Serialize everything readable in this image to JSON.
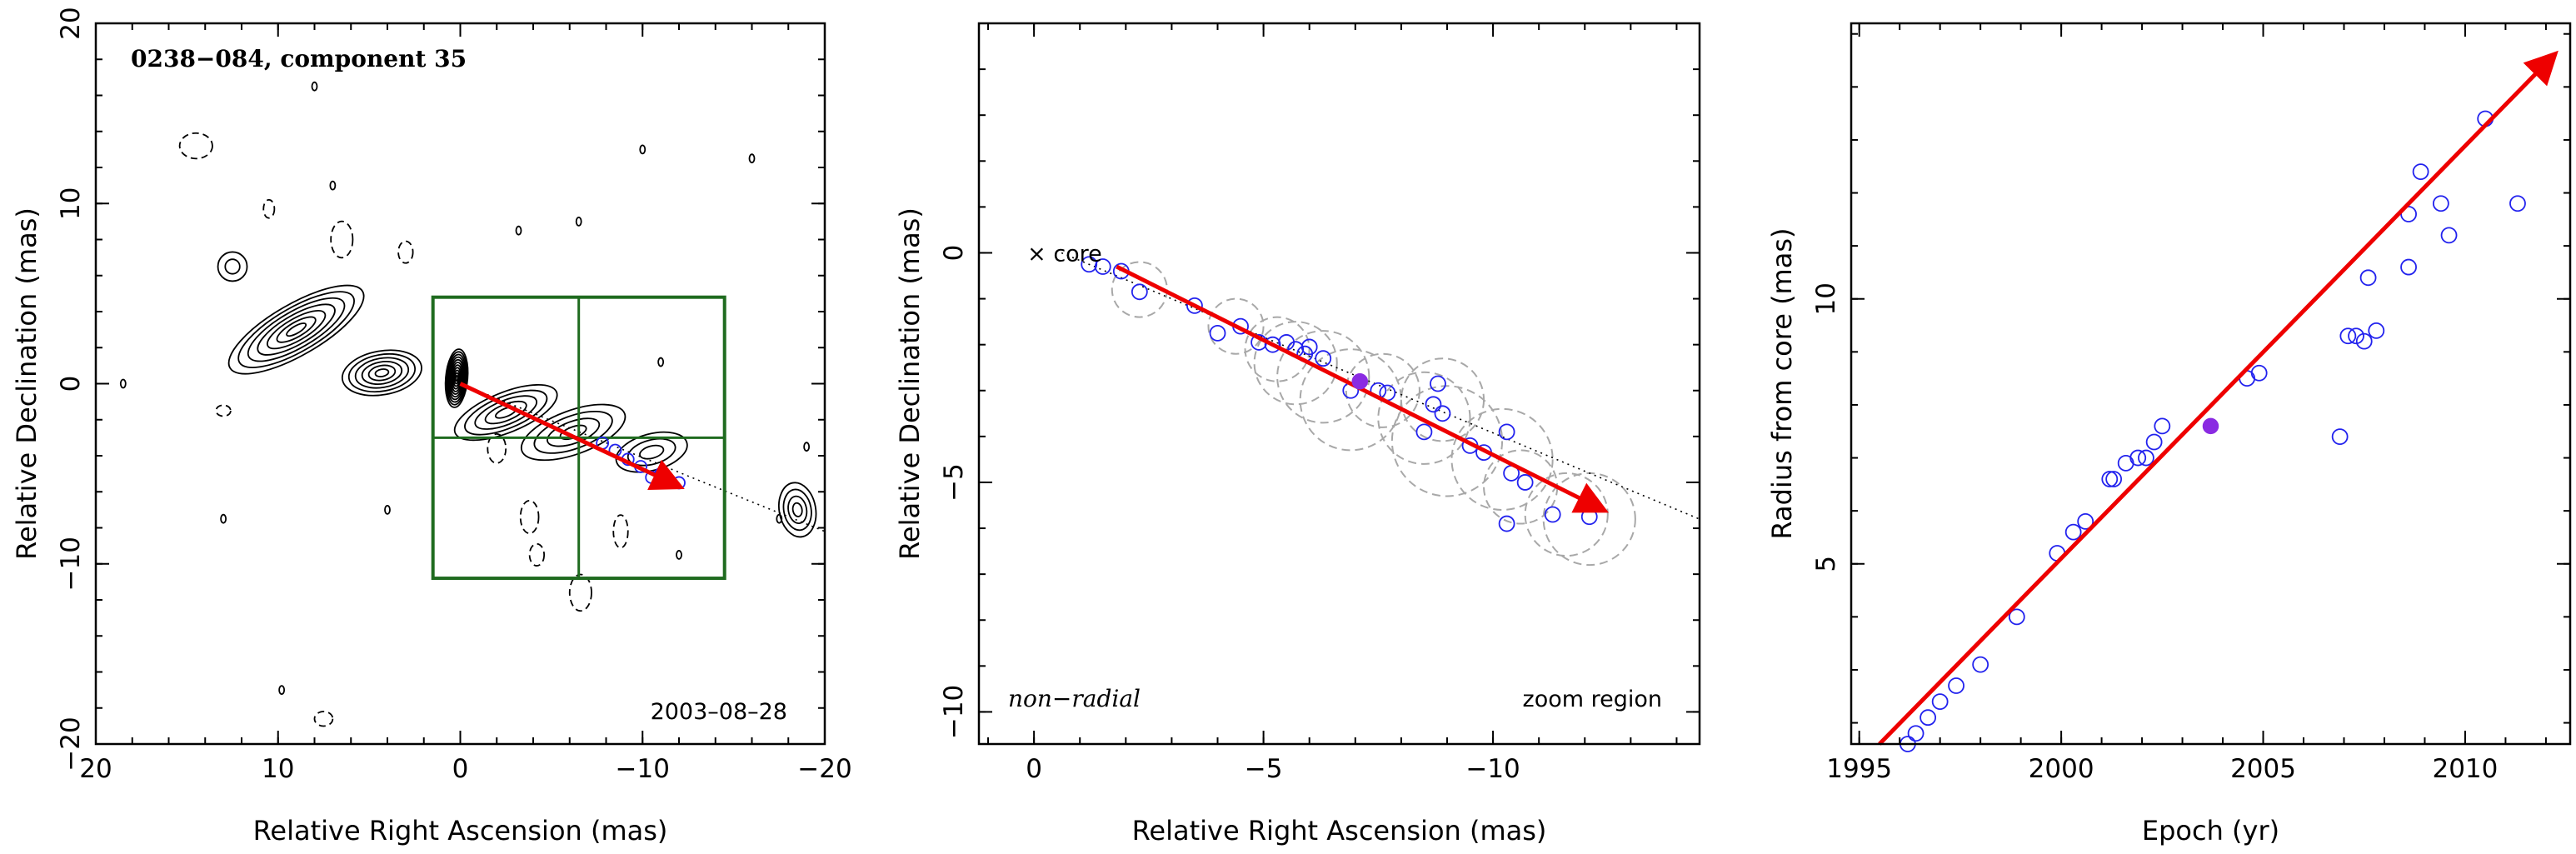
{
  "colors": {
    "arrow": "#ee0000",
    "points": "#2222ee",
    "highlight": "#8a2be2",
    "zoom_box": "#1f6b1f",
    "circles": "#a8a8a8",
    "contours": "#000000"
  },
  "chart_data": [
    {
      "type": "contour",
      "title": "0238−084, component 35",
      "epoch_label": "2003–08–28",
      "xlabel": "Relative Right Ascension (mas)",
      "ylabel": "Relative Declination (mas)",
      "xlim": [
        20,
        -20
      ],
      "ylim": [
        -20,
        20
      ],
      "xticks": [
        {
          "v": 20,
          "label": "20"
        },
        {
          "v": 10,
          "label": "10"
        },
        {
          "v": 0,
          "label": "0"
        },
        {
          "v": -10,
          "label": "−10"
        },
        {
          "v": -20,
          "label": "−20"
        }
      ],
      "yticks": [
        {
          "v": 20,
          "label": "20"
        },
        {
          "v": 10,
          "label": "10"
        },
        {
          "v": 0,
          "label": "0"
        },
        {
          "v": -10,
          "label": "−10"
        },
        {
          "v": -20,
          "label": "−20"
        }
      ],
      "zoom_box": {
        "ra": [
          1.5,
          -14.5
        ],
        "dec": [
          -10.8,
          4.8
        ]
      },
      "arrow": {
        "from": [
          0,
          0
        ],
        "to": [
          -12,
          -5.7
        ]
      },
      "points": [
        [
          -7.8,
          -3.3
        ],
        [
          -8.5,
          -3.7
        ],
        [
          -9.2,
          -4.2
        ],
        [
          -9.9,
          -4.6
        ],
        [
          -10.5,
          -5.2
        ],
        [
          -11.0,
          -5.0
        ],
        [
          -12.0,
          -5.5
        ]
      ],
      "trajectory_line": {
        "from": [
          0,
          0
        ],
        "to": [
          -20,
          -8.2
        ]
      }
    },
    {
      "type": "scatter",
      "xlabel": "Relative Right Ascension (mas)",
      "ylabel": "Relative Declination (mas)",
      "xlim": [
        1.2,
        -14.5
      ],
      "ylim": [
        -10.7,
        5
      ],
      "xticks": [
        {
          "v": 0,
          "label": "0"
        },
        {
          "v": -5,
          "label": "−5"
        },
        {
          "v": -10,
          "label": "−10"
        }
      ],
      "yticks": [
        {
          "v": 0,
          "label": "0"
        },
        {
          "v": -5,
          "label": "−5"
        },
        {
          "v": -10,
          "label": "−10"
        }
      ],
      "core_label": "× core",
      "corner_left": "non−radial",
      "corner_right": "zoom region",
      "arrow": {
        "from": [
          -1.8,
          -0.3
        ],
        "to": [
          -12.4,
          -5.6
        ]
      },
      "trajectory_line": {
        "from": [
          -0.6,
          0
        ],
        "to": [
          -14.5,
          -5.8
        ]
      },
      "highlight_point": [
        -7.1,
        -2.8
      ],
      "points": [
        [
          -1.2,
          -0.25
        ],
        [
          -1.5,
          -0.3
        ],
        [
          -1.9,
          -0.4
        ],
        [
          -2.3,
          -0.85
        ],
        [
          -3.5,
          -1.15
        ],
        [
          -4.0,
          -1.75
        ],
        [
          -4.5,
          -1.6
        ],
        [
          -4.9,
          -1.95
        ],
        [
          -5.2,
          -2.0
        ],
        [
          -5.5,
          -1.95
        ],
        [
          -5.7,
          -2.1
        ],
        [
          -5.9,
          -2.2
        ],
        [
          -6.0,
          -2.05
        ],
        [
          -6.3,
          -2.3
        ],
        [
          -6.9,
          -3.0
        ],
        [
          -7.5,
          -3.0
        ],
        [
          -7.7,
          -3.05
        ],
        [
          -8.5,
          -3.9
        ],
        [
          -8.7,
          -3.3
        ],
        [
          -8.8,
          -2.85
        ],
        [
          -8.9,
          -3.5
        ],
        [
          -9.5,
          -4.2
        ],
        [
          -9.8,
          -4.35
        ],
        [
          -10.3,
          -3.9
        ],
        [
          -10.3,
          -5.9
        ],
        [
          -10.4,
          -4.8
        ],
        [
          -10.7,
          -5.0
        ],
        [
          -11.3,
          -5.7
        ],
        [
          -12.1,
          -5.75
        ]
      ],
      "uncertainty_circles": [
        [
          -2.3,
          -0.8,
          0.6
        ],
        [
          -4.4,
          -1.6,
          0.6
        ],
        [
          -5.3,
          -2.1,
          0.7
        ],
        [
          -5.7,
          -2.4,
          0.9
        ],
        [
          -6.3,
          -2.7,
          1.0
        ],
        [
          -6.9,
          -3.2,
          1.1
        ],
        [
          -7.6,
          -3.0,
          0.8
        ],
        [
          -8.5,
          -3.6,
          1.0
        ],
        [
          -8.9,
          -3.2,
          0.9
        ],
        [
          -9.0,
          -4.1,
          1.2
        ],
        [
          -10.2,
          -4.5,
          1.1
        ],
        [
          -10.6,
          -5.1,
          0.8
        ],
        [
          -11.6,
          -5.7,
          0.9
        ],
        [
          -12.1,
          -5.8,
          1.0
        ]
      ]
    },
    {
      "type": "scatter",
      "xlabel": "Epoch (yr)",
      "ylabel": "Radius from core (mas)",
      "xlim": [
        1994.8,
        2012.6
      ],
      "ylim": [
        1.6,
        15.2
      ],
      "xticks": [
        {
          "v": 1995,
          "label": "1995"
        },
        {
          "v": 2000,
          "label": "2000"
        },
        {
          "v": 2005,
          "label": "2005"
        },
        {
          "v": 2010,
          "label": "2010"
        }
      ],
      "yticks": [
        {
          "v": 5,
          "label": "5"
        },
        {
          "v": 10,
          "label": "10"
        }
      ],
      "arrow": {
        "from": [
          1995.5,
          1.6
        ],
        "to": [
          2012.2,
          14.6
        ]
      },
      "highlight_point": [
        2003.7,
        7.6
      ],
      "points": [
        [
          1996.2,
          1.6
        ],
        [
          1996.4,
          1.8
        ],
        [
          1996.7,
          2.1
        ],
        [
          1997.0,
          2.4
        ],
        [
          1997.4,
          2.7
        ],
        [
          1998.0,
          3.1
        ],
        [
          1998.9,
          4.0
        ],
        [
          1999.9,
          5.2
        ],
        [
          2000.3,
          5.6
        ],
        [
          2000.6,
          5.8
        ],
        [
          2001.2,
          6.6
        ],
        [
          2001.3,
          6.6
        ],
        [
          2001.6,
          6.9
        ],
        [
          2001.9,
          7.0
        ],
        [
          2002.1,
          7.0
        ],
        [
          2002.3,
          7.3
        ],
        [
          2002.5,
          7.6
        ],
        [
          2004.6,
          8.5
        ],
        [
          2004.9,
          8.6
        ],
        [
          2006.9,
          7.4
        ],
        [
          2007.1,
          9.3
        ],
        [
          2007.3,
          9.3
        ],
        [
          2007.5,
          9.2
        ],
        [
          2007.6,
          10.4
        ],
        [
          2007.8,
          9.4
        ],
        [
          2008.6,
          10.6
        ],
        [
          2008.6,
          11.6
        ],
        [
          2008.9,
          12.4
        ],
        [
          2009.4,
          11.8
        ],
        [
          2009.6,
          11.2
        ],
        [
          2010.5,
          13.4
        ],
        [
          2011.3,
          11.8
        ]
      ]
    }
  ]
}
